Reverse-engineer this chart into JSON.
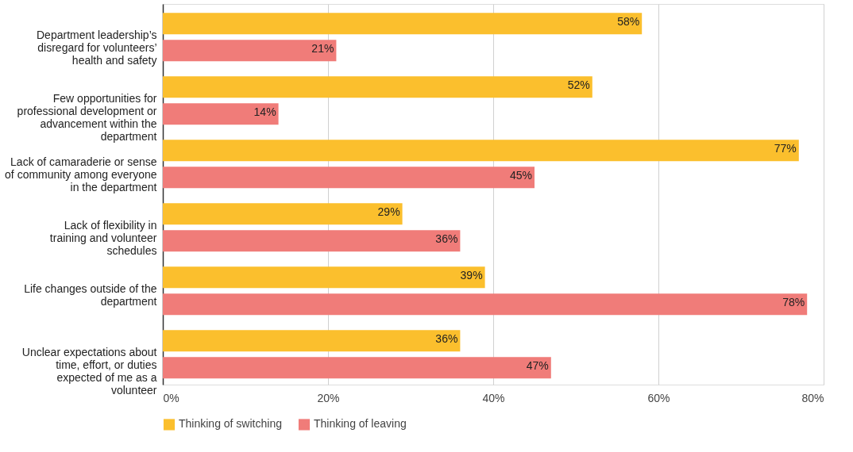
{
  "chart_data": {
    "type": "bar",
    "orientation": "horizontal",
    "categories": [
      "Department leadership’s disregard for volunteers’ health and safety",
      "Few opportunities for professional development or advancement within the department",
      "Lack of camaraderie or sense of community among everyone in the department",
      "Lack of flexibility in training and volunteer schedules",
      "Life changes outside of the department",
      "Unclear expectations about time, effort, or duties expected of me as a volunteer"
    ],
    "series": [
      {
        "name": "Thinking of switching",
        "color": "#fbbf2d",
        "values": [
          58,
          52,
          77,
          29,
          39,
          36
        ],
        "value_labels": [
          "58%",
          "52%",
          "77%",
          "29%",
          "39%",
          "36%"
        ]
      },
      {
        "name": "Thinking of leaving",
        "color": "#f07c79",
        "values": [
          21,
          14,
          45,
          36,
          78,
          47
        ],
        "value_labels": [
          "21%",
          "14%",
          "45%",
          "36%",
          "78%",
          "47%"
        ]
      }
    ],
    "xlim": [
      0,
      80
    ],
    "xticks": [
      {
        "value": 0,
        "label": "0%"
      },
      {
        "value": 20,
        "label": "20%"
      },
      {
        "value": 40,
        "label": "40%"
      },
      {
        "value": 60,
        "label": "60%"
      },
      {
        "value": 80,
        "label": "80%"
      }
    ],
    "grid": "x",
    "legend": "bottom"
  }
}
